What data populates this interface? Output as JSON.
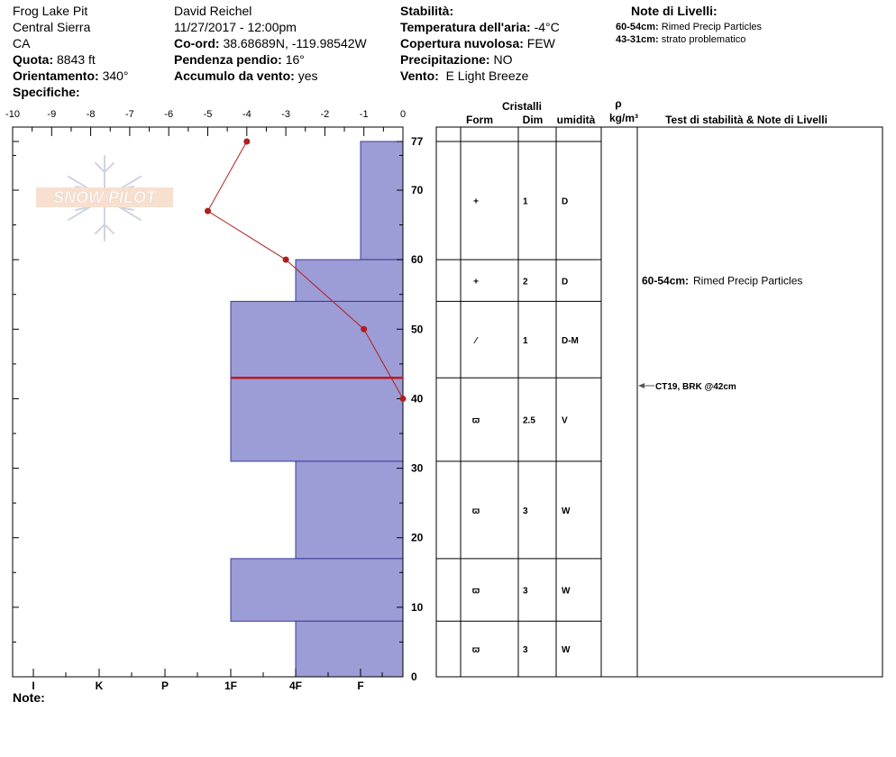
{
  "header": {
    "col1": {
      "pit_name": "Frog Lake Pit",
      "region": "Central Sierra",
      "state": "CA",
      "elevation_label": "Quota:",
      "elevation_value": "8843 ft",
      "aspect_label": "Orientamento:",
      "aspect_value": "340°",
      "specifics_label": "Specifiche:"
    },
    "col2": {
      "observer": "David Reichel",
      "datetime": "11/27/2017 - 12:00pm",
      "coord_label": "Co-ord:",
      "coord_value": "38.68689N, -119.98542W",
      "slope_label": "Pendenza pendio:",
      "slope_value": "16°",
      "wind_load_label": "Accumulo da vento:",
      "wind_load_value": "yes"
    },
    "col3": {
      "stability_label": "Stabilità:",
      "air_temp_label": "Temperatura dell'aria:",
      "air_temp_value": "-4°C",
      "cloud_label": "Copertura nuvolosa:",
      "cloud_value": "FEW",
      "precip_label": "Precipitazione:",
      "precip_value": "NO",
      "wind_label": "Vento:",
      "wind_value": "E Light Breeze"
    },
    "layer_notes": {
      "title": "Note di Livelli:",
      "items": [
        {
          "range": "60-54cm:",
          "text": "Rimed Precip Particles"
        },
        {
          "range": "43-31cm:",
          "text": "strato problematico"
        }
      ]
    }
  },
  "logo": {
    "text": "SNOW PILOT"
  },
  "notes_label": "Note:",
  "table": {
    "headers": {
      "crystals": "Cristalli",
      "form": "Form",
      "dim": "Dim",
      "humidity": "umidità",
      "rho": "ρ",
      "density_unit": "kg/m³",
      "tests": "Test di stabilità & Note di Livelli"
    },
    "rows": [
      {
        "top": 77,
        "bottom": 60,
        "form": "+",
        "dim": "1",
        "hum": "D"
      },
      {
        "top": 60,
        "bottom": 54,
        "form": "+",
        "dim": "2",
        "hum": "D"
      },
      {
        "top": 54,
        "bottom": 43,
        "form": "⁄",
        "dim": "1",
        "hum": "D-M"
      },
      {
        "top": 43,
        "bottom": 31,
        "form": "ϖ",
        "dim": "2.5",
        "hum": "V"
      },
      {
        "top": 31,
        "bottom": 17,
        "form": "ϖ",
        "dim": "3",
        "hum": "W"
      },
      {
        "top": 17,
        "bottom": 8,
        "form": "ϖ",
        "dim": "3",
        "hum": "W"
      },
      {
        "top": 8,
        "bottom": 0,
        "form": "ϖ",
        "dim": "3",
        "hum": "W"
      }
    ],
    "layer_note": {
      "depth": 57,
      "range": "60-54cm:",
      "text": "Rimed Precip Particles"
    },
    "stability_test": {
      "depth": 42,
      "text": "CT19, BRK @42cm"
    }
  },
  "chart_data": {
    "type": "snow-profile",
    "temperature_axis": {
      "min": -10,
      "max": 0,
      "ticks": [
        -10,
        -9,
        -8,
        -7,
        -6,
        -5,
        -4,
        -3,
        -2,
        -1,
        0
      ]
    },
    "height_axis": {
      "min": 0,
      "max": 77,
      "ticks": [
        0,
        10,
        20,
        30,
        40,
        50,
        60,
        70,
        77
      ]
    },
    "hardness_axis": {
      "labels": [
        "I",
        "K",
        "P",
        "1F",
        "4F",
        "F"
      ]
    },
    "hardness_layers": [
      {
        "top": 77,
        "bottom": 60,
        "hardness": "F"
      },
      {
        "top": 60,
        "bottom": 54,
        "hardness": "4F"
      },
      {
        "top": 54,
        "bottom": 43,
        "hardness": "1F"
      },
      {
        "top": 43,
        "bottom": 31,
        "hardness": "1F"
      },
      {
        "top": 31,
        "bottom": 17,
        "hardness": "4F"
      },
      {
        "top": 17,
        "bottom": 8,
        "hardness": "1F"
      },
      {
        "top": 8,
        "bottom": 0,
        "hardness": "4F"
      }
    ],
    "temperature_profile": [
      {
        "height": 77,
        "temp": -4
      },
      {
        "height": 67,
        "temp": -5
      },
      {
        "height": 60,
        "temp": -3
      },
      {
        "height": 50,
        "temp": -1
      },
      {
        "height": 40,
        "temp": 0
      }
    ],
    "weak_layer_height": 43,
    "colors": {
      "layer_fill": "#9c9cd6",
      "layer_stroke": "#3a3a9a",
      "temp_line": "#b01e1e",
      "weak_line": "#c01818"
    }
  }
}
